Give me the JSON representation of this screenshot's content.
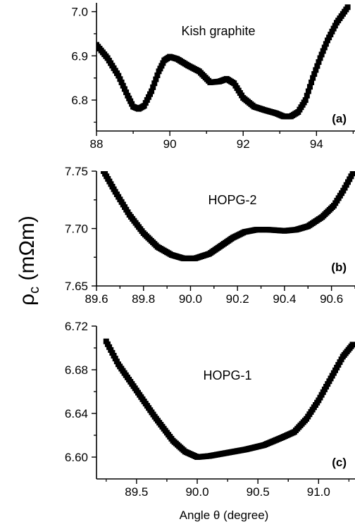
{
  "figure": {
    "ylabel": "ρc (mΩm)",
    "ylabel_main": "ρ",
    "ylabel_sub": "c",
    "ylabel_unit": " (mΩm)",
    "xlabel": "Angle θ (degree)",
    "colors": {
      "marker": "#000000",
      "axis": "#000000",
      "background": "#ffffff"
    }
  },
  "chart_data": [
    {
      "type": "scatter",
      "title": "Kish graphite",
      "panel_label": "(a)",
      "xlim": [
        88,
        95.05
      ],
      "ylim": [
        6.73,
        7.02
      ],
      "xticks": [
        88,
        90,
        92,
        94
      ],
      "xtick_labels": [
        "88",
        "90",
        "92",
        "94"
      ],
      "yticks": [
        6.8,
        6.9,
        7.0
      ],
      "ytick_labels": [
        "6.8",
        "6.9",
        "7.0"
      ],
      "marker": "square",
      "keypoints": [
        [
          88.0,
          6.925
        ],
        [
          88.3,
          6.895
        ],
        [
          88.6,
          6.855
        ],
        [
          88.85,
          6.81
        ],
        [
          89.0,
          6.785
        ],
        [
          89.15,
          6.78
        ],
        [
          89.3,
          6.787
        ],
        [
          89.5,
          6.82
        ],
        [
          89.7,
          6.865
        ],
        [
          89.85,
          6.89
        ],
        [
          90.0,
          6.898
        ],
        [
          90.2,
          6.893
        ],
        [
          90.5,
          6.878
        ],
        [
          90.8,
          6.865
        ],
        [
          91.1,
          6.84
        ],
        [
          91.35,
          6.842
        ],
        [
          91.55,
          6.848
        ],
        [
          91.75,
          6.838
        ],
        [
          92.0,
          6.805
        ],
        [
          92.3,
          6.785
        ],
        [
          92.6,
          6.777
        ],
        [
          92.9,
          6.77
        ],
        [
          93.1,
          6.763
        ],
        [
          93.3,
          6.763
        ],
        [
          93.5,
          6.773
        ],
        [
          93.7,
          6.8
        ],
        [
          93.9,
          6.85
        ],
        [
          94.1,
          6.895
        ],
        [
          94.3,
          6.935
        ],
        [
          94.55,
          6.975
        ],
        [
          94.85,
          7.01
        ]
      ]
    },
    {
      "type": "scatter",
      "title": "HOPG-2",
      "panel_label": "(b)",
      "xlim": [
        89.6,
        90.7
      ],
      "ylim": [
        7.65,
        7.75
      ],
      "xticks": [
        89.6,
        89.8,
        90.0,
        90.2,
        90.4,
        90.6
      ],
      "xtick_labels": [
        "89.6",
        "89.8",
        "90.0",
        "90.2",
        "90.4",
        "90.6"
      ],
      "yticks": [
        7.65,
        7.7,
        7.75
      ],
      "ytick_labels": [
        "7.65",
        "7.70",
        "7.75"
      ],
      "marker": "square",
      "keypoints": [
        [
          89.63,
          7.75
        ],
        [
          89.68,
          7.732
        ],
        [
          89.74,
          7.712
        ],
        [
          89.8,
          7.696
        ],
        [
          89.86,
          7.684
        ],
        [
          89.92,
          7.677
        ],
        [
          89.97,
          7.674
        ],
        [
          90.02,
          7.674
        ],
        [
          90.08,
          7.678
        ],
        [
          90.13,
          7.685
        ],
        [
          90.18,
          7.692
        ],
        [
          90.23,
          7.697
        ],
        [
          90.28,
          7.699
        ],
        [
          90.33,
          7.699
        ],
        [
          90.4,
          7.698
        ],
        [
          90.45,
          7.699
        ],
        [
          90.5,
          7.702
        ],
        [
          90.56,
          7.71
        ],
        [
          90.61,
          7.72
        ],
        [
          90.65,
          7.733
        ],
        [
          90.69,
          7.748
        ]
      ]
    },
    {
      "type": "scatter",
      "title": "HOPG-1",
      "panel_label": "(c)",
      "xlim": [
        89.17,
        91.3
      ],
      "ylim": [
        6.58,
        6.72
      ],
      "xticks": [
        89.5,
        90.0,
        90.5,
        91.0
      ],
      "xtick_labels": [
        "89.5",
        "90.0",
        "90.5",
        "91.0"
      ],
      "yticks": [
        6.6,
        6.64,
        6.68,
        6.72
      ],
      "ytick_labels": [
        "6.60",
        "6.64",
        "6.68",
        "6.72"
      ],
      "marker": "square",
      "keypoints": [
        [
          89.25,
          6.706
        ],
        [
          89.35,
          6.685
        ],
        [
          89.5,
          6.661
        ],
        [
          89.65,
          6.637
        ],
        [
          89.8,
          6.615
        ],
        [
          89.9,
          6.605
        ],
        [
          90.0,
          6.6
        ],
        [
          90.1,
          6.601
        ],
        [
          90.25,
          6.604
        ],
        [
          90.4,
          6.607
        ],
        [
          90.55,
          6.611
        ],
        [
          90.7,
          6.618
        ],
        [
          90.8,
          6.623
        ],
        [
          90.9,
          6.635
        ],
        [
          91.0,
          6.652
        ],
        [
          91.1,
          6.672
        ],
        [
          91.2,
          6.692
        ],
        [
          91.28,
          6.703
        ]
      ]
    }
  ]
}
